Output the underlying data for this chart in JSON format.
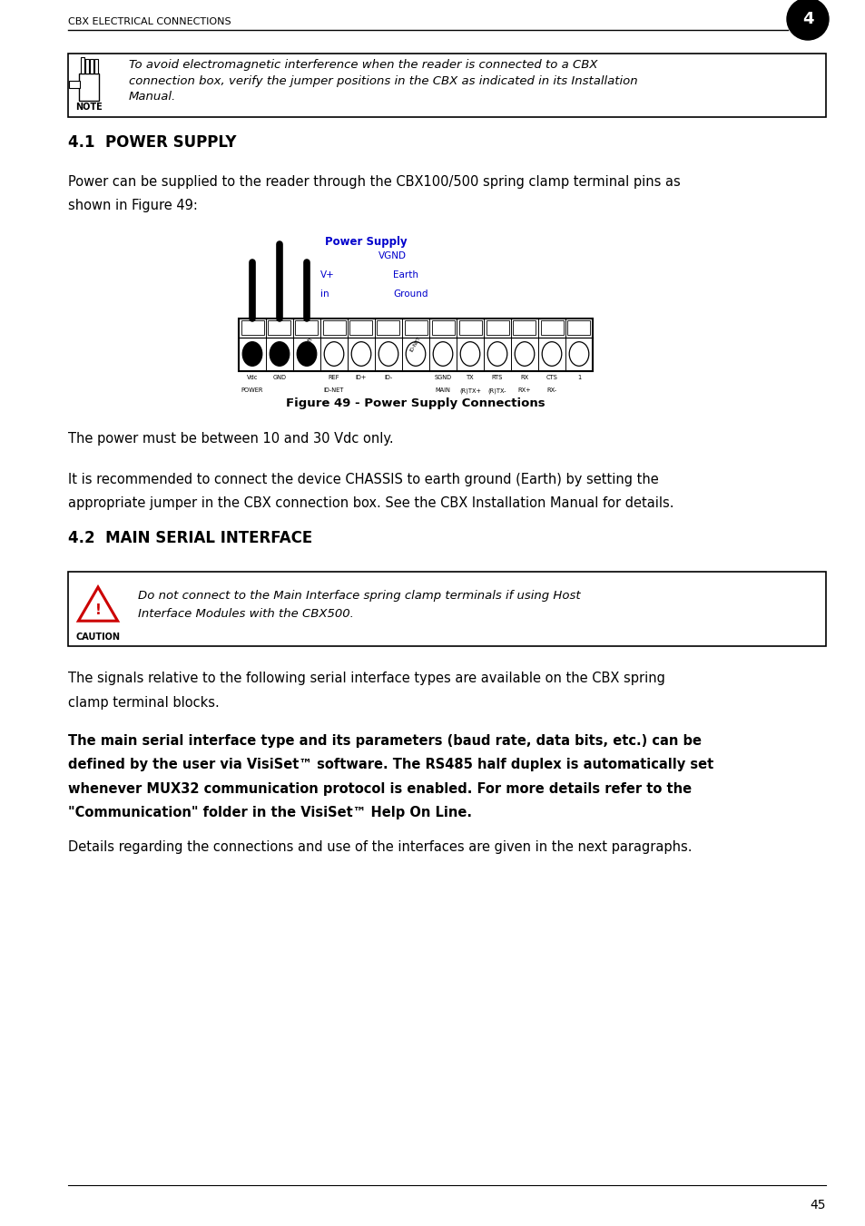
{
  "page_bg": "#ffffff",
  "header_text": "CBX ELECTRICAL CONNECTIONS",
  "header_number": "4",
  "note_box_text_line1": "To avoid electromagnetic interference when the reader is connected to a CBX",
  "note_box_text_line2": "connection box, verify the jumper positions in the CBX as indicated in its Installation",
  "note_box_text_line3": "Manual.",
  "note_label": "NOTE",
  "section1_title": "4.1  POWER SUPPLY",
  "section1_body1_line1": "Power can be supplied to the reader through the CBX100/500 spring clamp terminal pins as",
  "section1_body1_line2": "shown in Figure 49:",
  "figure_caption": "Figure 49 - Power Supply Connections",
  "ps_label": "Power Supply",
  "vgnd_label": "VGND",
  "vplus_label": "V+",
  "vin_label": "in",
  "earth_label": "Earth",
  "ground_label": "Ground",
  "fig_labels": [
    "Vdc\nPOWER",
    "GND",
    "",
    "REF\nID-NET",
    "ID+",
    "ID-",
    "",
    "SGND\nMAIN",
    "TX\n(R)TX+",
    "RTS\n(R)TX-",
    "RX\nRX+",
    "CTS\nRX-",
    "1"
  ],
  "section1_body2": "The power must be between 10 and 30 Vdc only.",
  "section1_body3_line1": "It is recommended to connect the device CHASSIS to earth ground (Earth) by setting the",
  "section1_body3_line2": "appropriate jumper in the CBX connection box. See the CBX Installation Manual for details.",
  "section2_title": "4.2  MAIN SERIAL INTERFACE",
  "caution_line1": "Do not connect to the Main Interface spring clamp terminals if using Host",
  "caution_line2": "Interface Modules with the CBX500.",
  "caution_label": "CAUTION",
  "section2_body1_line1": "The signals relative to the following serial interface types are available on the CBX spring",
  "section2_body1_line2": "clamp terminal blocks.",
  "section2_body2_line1": "The main serial interface type and its parameters (baud rate, data bits, etc.) can be",
  "section2_body2_line2": "defined by the user via VisiSet™ software. The RS485 half duplex is automatically set",
  "section2_body2_line3": "whenever MUX32 communication protocol is enabled. For more details refer to the",
  "section2_body2_line4": "\"Communication\" folder in the VisiSet™ Help On Line.",
  "section2_body3": "Details regarding the connections and use of the interfaces are given in the next paragraphs.",
  "page_number": "45",
  "blue_color": "#0000cc",
  "black_color": "#000000",
  "red_color": "#cc0000",
  "body_font_size": 10.5
}
